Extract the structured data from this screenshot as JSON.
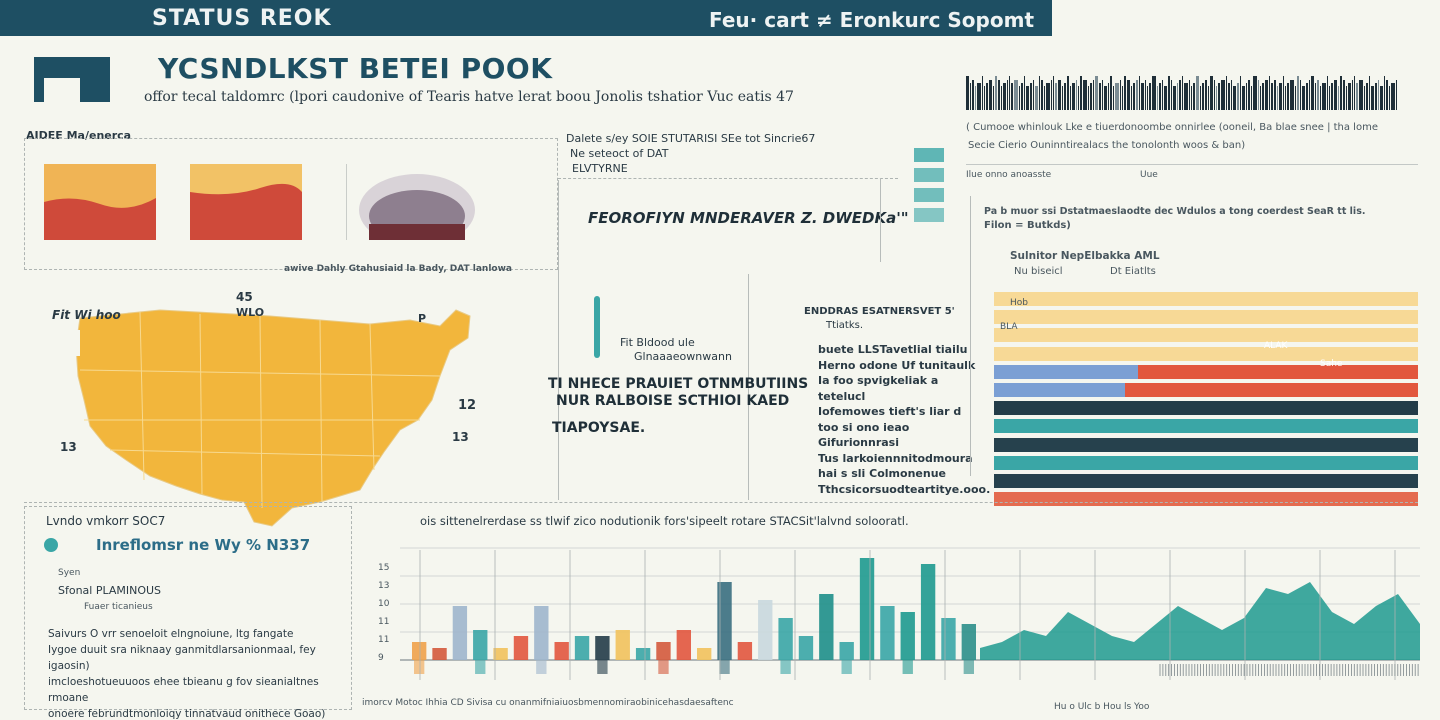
{
  "banner": {
    "left": "STATUS REOK",
    "right": "Feu· cart ≠ Eronkurc Sopomt"
  },
  "header": {
    "title": "YCSNDLKST BETEI POOK",
    "subtitle": "offor tecal  taldomrc (lpori caudonive of Tearis hatve lerat boou Jonolis tshatior Vuc eatis 47"
  },
  "left_panel": {
    "label": "AIDEE Ma/enerca",
    "caption": "awive Dahly Gtahusiaid la Bady, DAT lanlowa"
  },
  "center_panel": {
    "line1": "Dalete s/ey SOIE STUTARISI SEe tot Sincrie67",
    "line2": "Ne seteoct of DAT",
    "line3": "ELVTYRNE",
    "bold_line": "FEOROFIYN MNDERAVER Z. DWEDKa'\""
  },
  "barcode_panel": {
    "caption1": "( Cumooe whinlouk Lke e tiuerdonoombe onnirlee (ooneil, Ba blae snee | tha lome",
    "caption2": "Secie Cierio Ouninntirealacs the tonolonth woos & ban)",
    "col1": "Ilue onno anoasste",
    "col2": "Uue"
  },
  "map": {
    "labels": [
      "45",
      "WLO",
      "Fit Wi hoo",
      "12",
      "13",
      "13",
      "P"
    ],
    "map_color": "#f2b63c"
  },
  "center_middle": {
    "note1": "Fit Bldood ule",
    "note2": "Glnaaaeownwann",
    "big1": "TI NHECE PRAUIET OTNMBUTIINS",
    "big2": "NUR RALBOISE SCTHIOI KAED",
    "big3": "TIAPOYSAE."
  },
  "text_column": {
    "title": "ENDDRAS ESATNERSVET 5'",
    "subtitle": "Ttiatks.",
    "lines": [
      "buete LLSTavetlial tiailu",
      "Herno odone Uf tunitaulk",
      "Ia foo spvigkeliak a tetelucl",
      "Iofemowes tieft's liar d",
      "too si ono ieao Gifurionnrasi",
      "Tus larkoiennnitodmoura",
      "hai s sli Colmonenue",
      "Tthcsicorsuodteartitye.ooo."
    ]
  },
  "hbar_chart_meta": {
    "header": "Pa b muor ssi Dstatmaeslaodte dec Wdulos a tong coerdest SeaR tt lis.",
    "header2": "Filon = Butkds)",
    "legend1": "Sulnitor NepElbakka AML",
    "legend2": "Nu biseicl",
    "legend3": "Dt Eiatlts",
    "row_labels": [
      "Hob",
      "BLA"
    ],
    "bar_labels": [
      "ALAK",
      "Sahe"
    ]
  },
  "bottom_left": {
    "title": "Lvndo vmkorr SOC7",
    "subtitle": "Inreflomsr ne Wy % N337",
    "label1": "Syen",
    "label2": "Sfonal PLAMINOUS",
    "label3": "Fuaer ticanieus",
    "para": [
      "Saivurs O vrr senoeloit  elngnoiune, ltg fangate",
      "Iygoe duuit sra niknaay ganmitdlarsanionmaal, fey igaosin)",
      "imcloeshotueuuoos ehee tbieanu g fov sieanialtnes rmoane",
      "onoere februndtmonloiqy tinnatvaud onithece Goao)"
    ]
  },
  "bottom_chart_meta": {
    "title": "ois sittenelrerdase ss tlwif zico nodutionik fors'sipeelt rotare STACSit'lalvnd solooratl.",
    "footer": "imorcv Motoc Ihhia CD Sivisa cu onanmifniaiuosbmennomiraobinicehasdaesaftenc",
    "footer_right": "Hu o Ulc b  Hou ls Yoo",
    "axis_labels": [
      "15",
      "13",
      "10",
      "11",
      "11",
      "9"
    ]
  },
  "chart_data": [
    {
      "type": "bar",
      "orientation": "horizontal",
      "title": "",
      "categories": [
        "row1",
        "row2",
        "row3",
        "row4",
        "row5",
        "row6",
        "row7",
        "row8",
        "row9",
        "row10",
        "row11",
        "row12"
      ],
      "series": [
        {
          "color": "#f7d996",
          "values": [
            100,
            100,
            100,
            100,
            0,
            0,
            0,
            0,
            0,
            0,
            0,
            0
          ]
        },
        {
          "color": "#7b9fd4",
          "values": [
            0,
            0,
            0,
            0,
            34,
            31,
            0,
            0,
            0,
            0,
            0,
            0
          ]
        },
        {
          "color": "#e2573e",
          "values": [
            0,
            0,
            0,
            0,
            66,
            69,
            0,
            0,
            0,
            0,
            0,
            0
          ]
        },
        {
          "color": "#233c48",
          "values": [
            0,
            0,
            0,
            0,
            0,
            0,
            100,
            0,
            0,
            0,
            0,
            0
          ]
        },
        {
          "color": "#3aa6a6",
          "values": [
            0,
            0,
            0,
            0,
            0,
            0,
            0,
            100,
            0,
            100,
            0,
            0
          ]
        },
        {
          "color": "#26414d",
          "values": [
            0,
            0,
            0,
            0,
            0,
            0,
            0,
            0,
            100,
            0,
            100,
            0
          ]
        },
        {
          "color": "#e46b4f",
          "values": [
            0,
            0,
            0,
            0,
            0,
            0,
            0,
            0,
            0,
            0,
            0,
            100
          ]
        }
      ],
      "xlim": [
        0,
        100
      ]
    },
    {
      "type": "bar",
      "title": "",
      "categories": [
        "c1",
        "c2",
        "c3",
        "c4",
        "c5",
        "c6",
        "c7",
        "c8",
        "c9",
        "c10",
        "c11",
        "c12",
        "c13",
        "c14",
        "c15",
        "c16",
        "c17",
        "c18",
        "c19",
        "c20",
        "c21",
        "c22",
        "c23",
        "c24",
        "c25",
        "c26",
        "c27",
        "c28"
      ],
      "values": [
        3,
        2,
        9,
        5,
        2,
        4,
        9,
        3,
        4,
        4,
        5,
        2,
        3,
        5,
        2,
        13,
        3,
        10,
        7,
        4,
        11,
        3,
        17,
        9,
        8,
        16,
        7,
        6
      ],
      "colors": [
        "#f0a24a",
        "#d45a3c",
        "#9fb6cc",
        "#3aa6a6",
        "#f2c25c",
        "#e2573e",
        "#9fb6cc",
        "#e2573e",
        "#3aa6a6",
        "#233c48",
        "#f2c25c",
        "#3aa6a6",
        "#d45a3c",
        "#e2573e",
        "#f2c25c",
        "#3a6f7f",
        "#e2573e",
        "#c9d8de",
        "#3aa6a6",
        "#3aa6a6",
        "#1e8f8a",
        "#3aa6a6",
        "#1e9a8f",
        "#3aa6a6",
        "#1e9a8f",
        "#1e9a8f",
        "#3aa6a6",
        "#2c8f8a"
      ],
      "ylim": [
        0,
        20
      ]
    },
    {
      "type": "area",
      "title": "",
      "x": [
        0,
        1,
        2,
        3,
        4,
        5,
        6,
        7,
        8,
        9,
        10,
        11,
        12,
        13,
        14,
        15,
        16,
        17,
        18,
        19,
        20
      ],
      "values": [
        2,
        3,
        5,
        4,
        8,
        6,
        4,
        3,
        6,
        9,
        7,
        5,
        7,
        12,
        11,
        13,
        8,
        6,
        9,
        11,
        6
      ],
      "color": "#1e9a8f",
      "ylim": [
        0,
        20
      ]
    }
  ]
}
